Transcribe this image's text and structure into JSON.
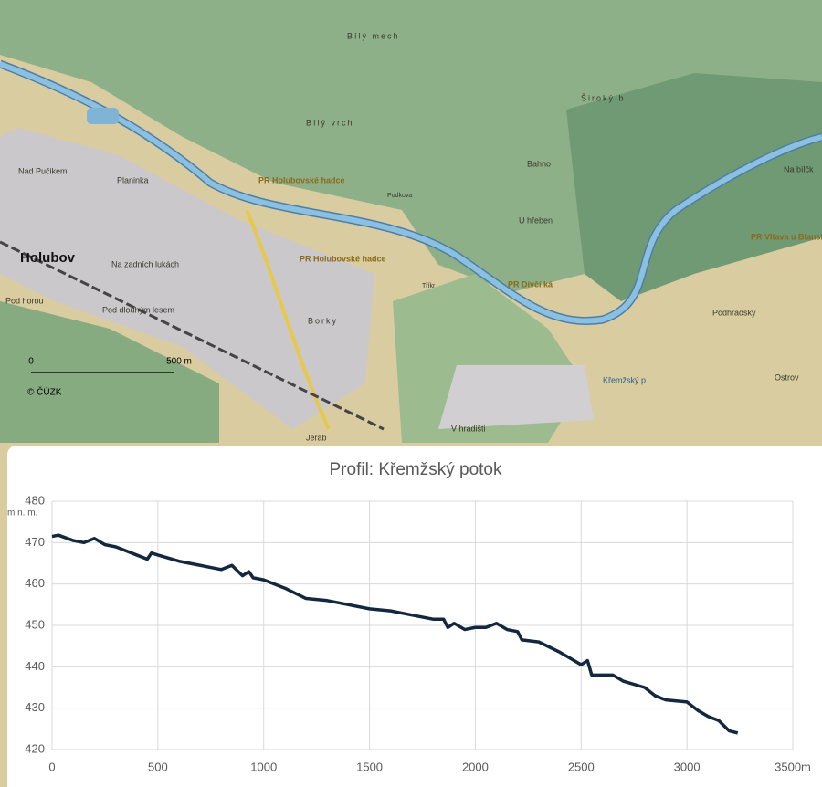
{
  "map": {
    "labels": [
      "Holubov",
      "Planinka",
      "Nad Pučikem",
      "Na zadních lukách",
      "Pod horou",
      "Pod dlouhým lesem",
      "Borky",
      "PR Holubovské hadce",
      "PR Holubovské hadce",
      "Bílý mech",
      "Bílý vrch",
      "Široký b",
      "Bahno",
      "U hřeben",
      "PR Dívčí ká",
      "PR Vltava u Blansk",
      "Na bílčk",
      "Podhradský",
      "Ostrov",
      "Křemžský p",
      "V hradišti",
      "Jeřáb",
      "Podkova",
      "Tříkr"
    ],
    "scale": {
      "start": "0",
      "end": "500 m"
    },
    "copyright": "© ČÚZK"
  },
  "chart_data": {
    "type": "line",
    "title": "Profil: Křemžský potok",
    "y_label": "m n. m.",
    "x": [
      0,
      30,
      100,
      150,
      200,
      250,
      300,
      400,
      450,
      470,
      500,
      600,
      700,
      750,
      800,
      850,
      900,
      930,
      950,
      1000,
      1100,
      1200,
      1300,
      1400,
      1500,
      1600,
      1700,
      1800,
      1850,
      1870,
      1900,
      1950,
      2000,
      2050,
      2100,
      2150,
      2200,
      2220,
      2300,
      2400,
      2450,
      2500,
      2530,
      2550,
      2650,
      2700,
      2800,
      2850,
      2900,
      3000,
      3050,
      3100,
      3150,
      3200,
      3240
    ],
    "values": [
      471.5,
      471.8,
      470.5,
      470,
      471,
      469.5,
      469,
      467,
      466,
      467.5,
      467,
      465.5,
      464.5,
      464,
      463.5,
      464.5,
      462,
      463,
      461.5,
      461,
      459,
      456.5,
      456,
      455,
      454,
      453.5,
      452.5,
      451.5,
      451.5,
      449.5,
      450.5,
      449,
      449.5,
      449.5,
      450.5,
      449,
      448.5,
      446.5,
      446,
      443.5,
      442,
      440.5,
      441.5,
      438,
      438,
      436.5,
      435,
      433,
      432,
      431.5,
      429.5,
      428,
      427,
      424.5,
      424
    ],
    "color": "#13283f",
    "xlim": [
      0,
      3500
    ],
    "ylim": [
      420,
      480
    ],
    "xticks": [
      0,
      500,
      1000,
      1500,
      2000,
      2500,
      3000,
      {
        "value": 3500,
        "label": "3500m"
      }
    ],
    "yticks": [
      420,
      430,
      440,
      450,
      460,
      470,
      480
    ],
    "grid": true
  }
}
